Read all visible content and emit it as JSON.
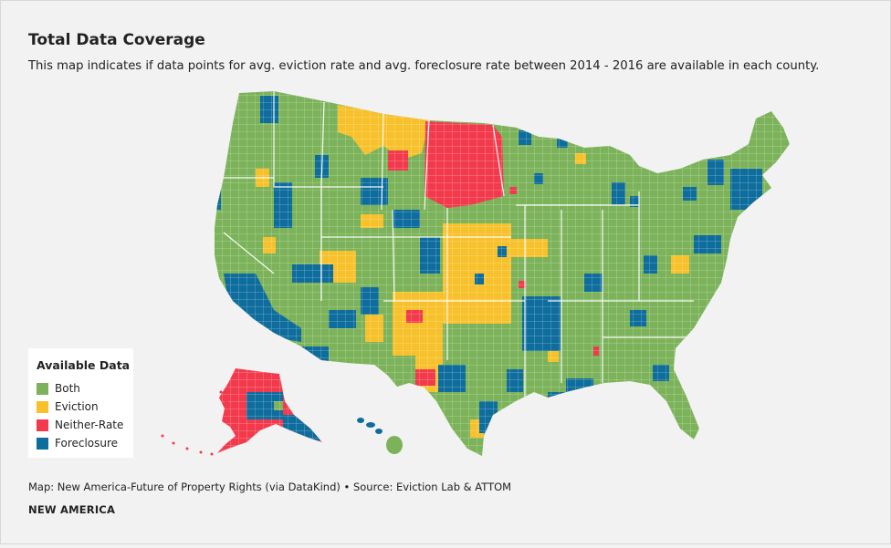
{
  "title": "Total Data Coverage",
  "subtitle": "This map indicates if data points for avg. eviction rate and avg. foreclosure rate between 2014 - 2016 are available in each county.",
  "legend": {
    "title": "Available Data",
    "items": [
      {
        "label": "Both",
        "color": "#7cb35a"
      },
      {
        "label": "Eviction",
        "color": "#f7c12c"
      },
      {
        "label": "Neither-Rate",
        "color": "#f23a4c"
      },
      {
        "label": "Foreclosure",
        "color": "#0e6d9c"
      }
    ]
  },
  "credit": "Map: New America-Future of Property Rights (via DataKind) • Source: Eviction Lab & ATTOM",
  "brand": "NEW AMERICA",
  "colors": {
    "both": "#7cb35a",
    "eviction": "#f7c12c",
    "neither": "#f23a4c",
    "foreclosure": "#0e6d9c",
    "border": "#ffffff",
    "background": "#f2f2f2"
  }
}
